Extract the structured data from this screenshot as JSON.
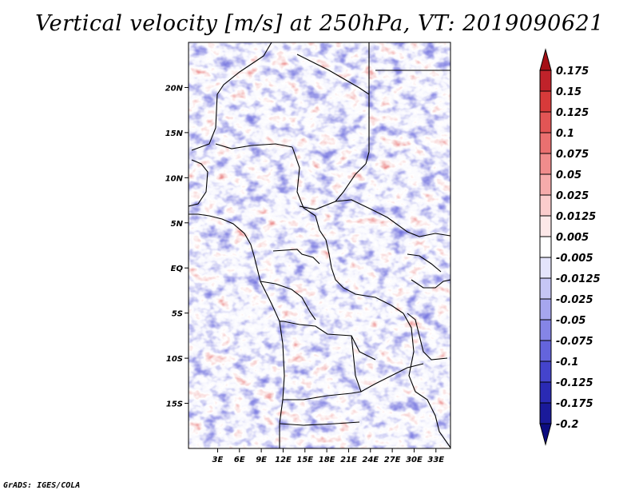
{
  "title": "Vertical velocity [m/s] at 250hPa, VT: 2019090621",
  "credit": "GrADS: IGES/COLA",
  "map": {
    "lon_range": [
      -1,
      35
    ],
    "lat_range": [
      -20,
      25
    ],
    "lat_ticks": [
      {
        "lat": 20,
        "label": "20N"
      },
      {
        "lat": 15,
        "label": "15N"
      },
      {
        "lat": 10,
        "label": "10N"
      },
      {
        "lat": 5,
        "label": "5N"
      },
      {
        "lat": 0,
        "label": "EQ"
      },
      {
        "lat": -5,
        "label": "5S"
      },
      {
        "lat": -10,
        "label": "10S"
      },
      {
        "lat": -15,
        "label": "15S"
      }
    ],
    "lon_ticks": [
      {
        "lon": 3,
        "label": "3E"
      },
      {
        "lon": 6,
        "label": "6E"
      },
      {
        "lon": 9,
        "label": "9E"
      },
      {
        "lon": 12,
        "label": "12E"
      },
      {
        "lon": 15,
        "label": "15E"
      },
      {
        "lon": 18,
        "label": "18E"
      },
      {
        "lon": 21,
        "label": "21E"
      },
      {
        "lon": 24,
        "label": "24E"
      },
      {
        "lon": 27,
        "label": "27E"
      },
      {
        "lon": 30,
        "label": "30E"
      },
      {
        "lon": 33,
        "label": "33E"
      }
    ]
  },
  "colorbar": {
    "labels": [
      "0.175",
      "0.15",
      "0.125",
      "0.1",
      "0.075",
      "0.05",
      "0.025",
      "0.0125",
      "0.005",
      "-0.005",
      "-0.0125",
      "-0.025",
      "-0.05",
      "-0.075",
      "-0.1",
      "-0.125",
      "-0.175",
      "-0.2"
    ],
    "colors": [
      "#a50f15",
      "#c0222a",
      "#d73a3a",
      "#e25555",
      "#ea7070",
      "#f08c8c",
      "#f6abab",
      "#fbcccc",
      "#fde8e8",
      "#ffffff",
      "#e4e4fb",
      "#c6c6f5",
      "#a6a6ee",
      "#8585e6",
      "#6464dc",
      "#4444cc",
      "#2a2ab4",
      "#1a1a9a",
      "#0c0c80"
    ]
  },
  "field_colors": {
    "positive": "#e05252",
    "negative": "#5050d8",
    "neutral": "#ffffff"
  }
}
